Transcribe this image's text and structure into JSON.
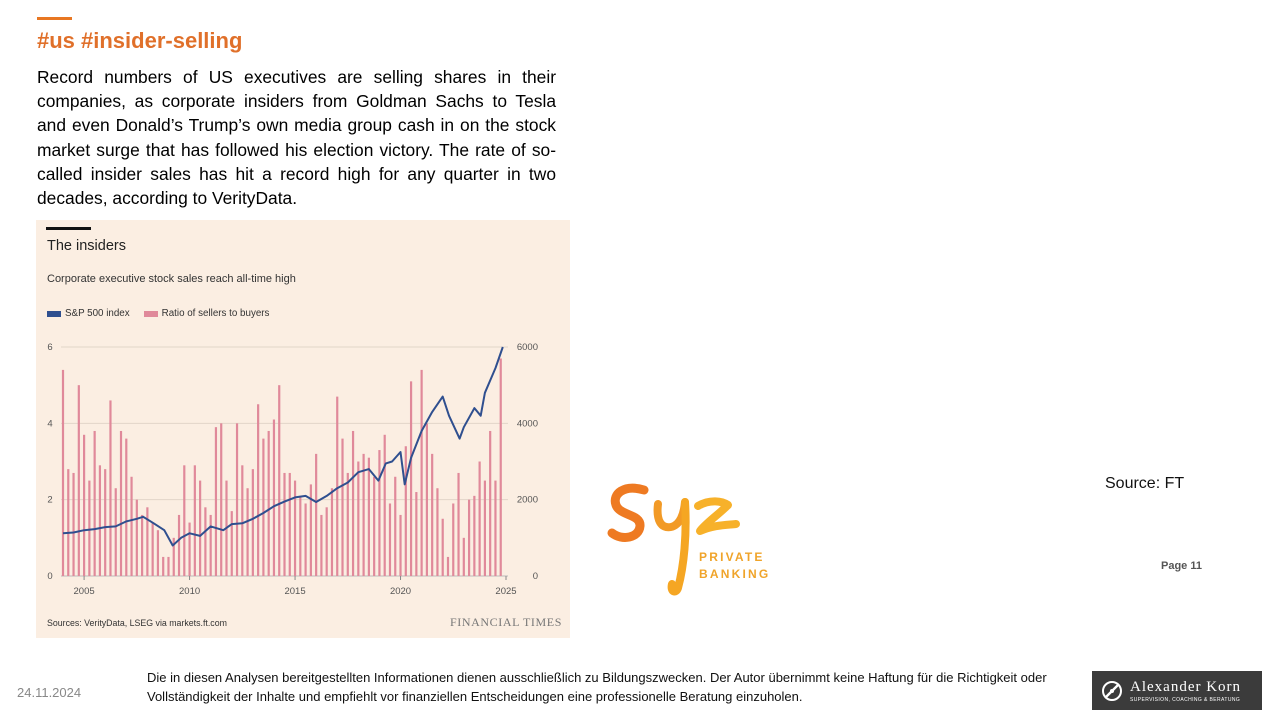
{
  "slide": {
    "hashtag": "#us #insider-selling",
    "intro": "Record numbers of US executives are selling shares in their companies, as corporate insiders from Goldman Sachs to Tesla and even Donald’s Trump’s own media group cash in on the stock market surge that has followed his election victory. The rate of so-called insider sales has hit a record high for any quarter in two decades, according to VerityData.",
    "source_note": "Source: FT",
    "page": "Page 11",
    "date": "24.11.2024",
    "disclaimer": "Die in diesen Analysen bereitgestellten Informationen dienen ausschließlich zu Bildungszwecken. Der Autor übernimmt keine Haftung für die Richtigkeit oder Vollständigkeit der Inhalte und empfiehlt vor finanziellen Entscheidungen eine professionelle Beratung einzuholen."
  },
  "logos": {
    "syz_line1": "PRIVATE",
    "syz_line2": "BANKING",
    "ak_name": "Alexander Korn",
    "ak_sub": "SUPERVISION, COACHING & BERATUNG"
  },
  "chart_data": {
    "type": "bar",
    "title": "The insiders",
    "subtitle": "Corporate executive stock sales reach all-time high",
    "sources": "Sources: VerityData, LSEG via markets.ft.com",
    "publisher": "FINANCIAL TIMES",
    "legend_position": "top-left",
    "grid": true,
    "colors": {
      "sp500": "#2f4f8f",
      "ratio": "#e0899a",
      "background": "#fbeee2"
    },
    "x_ticks": [
      2005,
      2010,
      2015,
      2020,
      2025
    ],
    "xlim": [
      2004,
      2025
    ],
    "left_axis": {
      "ylim": [
        0,
        6
      ],
      "ticks": [
        0,
        2,
        4,
        6
      ]
    },
    "right_axis": {
      "ylim": [
        0,
        6000
      ],
      "ticks": [
        0,
        2000,
        4000,
        6000
      ]
    },
    "series": [
      {
        "name": "Ratio of sellers to buyers",
        "type": "bar",
        "axis": "left",
        "x": [
          2004.0,
          2004.25,
          2004.5,
          2004.75,
          2005.0,
          2005.25,
          2005.5,
          2005.75,
          2006.0,
          2006.25,
          2006.5,
          2006.75,
          2007.0,
          2007.25,
          2007.5,
          2007.75,
          2008.0,
          2008.25,
          2008.5,
          2008.75,
          2009.0,
          2009.25,
          2009.5,
          2009.75,
          2010.0,
          2010.25,
          2010.5,
          2010.75,
          2011.0,
          2011.25,
          2011.5,
          2011.75,
          2012.0,
          2012.25,
          2012.5,
          2012.75,
          2013.0,
          2013.25,
          2013.5,
          2013.75,
          2014.0,
          2014.25,
          2014.5,
          2014.75,
          2015.0,
          2015.25,
          2015.5,
          2015.75,
          2016.0,
          2016.25,
          2016.5,
          2016.75,
          2017.0,
          2017.25,
          2017.5,
          2017.75,
          2018.0,
          2018.25,
          2018.5,
          2018.75,
          2019.0,
          2019.25,
          2019.5,
          2019.75,
          2020.0,
          2020.25,
          2020.5,
          2020.75,
          2021.0,
          2021.25,
          2021.5,
          2021.75,
          2022.0,
          2022.25,
          2022.5,
          2022.75,
          2023.0,
          2023.25,
          2023.5,
          2023.75,
          2024.0,
          2024.25,
          2024.5,
          2024.75
        ],
        "values": [
          5.4,
          2.8,
          2.7,
          5.0,
          3.7,
          2.5,
          3.8,
          2.9,
          2.8,
          4.6,
          2.3,
          3.8,
          3.6,
          2.6,
          2.0,
          1.6,
          1.8,
          1.4,
          1.2,
          0.5,
          0.5,
          1.0,
          1.6,
          2.9,
          1.4,
          2.9,
          2.5,
          1.8,
          1.6,
          3.9,
          4.0,
          2.5,
          1.7,
          4.0,
          2.9,
          2.3,
          2.8,
          4.5,
          3.6,
          3.8,
          4.1,
          5.0,
          2.7,
          2.7,
          2.5,
          2.1,
          1.9,
          2.4,
          3.2,
          1.6,
          1.8,
          2.3,
          4.7,
          3.6,
          2.7,
          3.8,
          3.0,
          3.2,
          3.1,
          2.6,
          3.3,
          3.7,
          1.9,
          2.6,
          1.6,
          3.4,
          5.1,
          2.2,
          5.4,
          4.0,
          3.2,
          2.3,
          1.5,
          0.5,
          1.9,
          2.7,
          1.0,
          2.0,
          2.1,
          3.0,
          2.5,
          3.8,
          2.5,
          5.7
        ]
      },
      {
        "name": "S&P 500 index",
        "type": "line",
        "axis": "right",
        "x": [
          2004.0,
          2004.5,
          2005.0,
          2005.5,
          2006.0,
          2006.5,
          2007.0,
          2007.5,
          2007.8,
          2008.3,
          2008.8,
          2009.2,
          2009.6,
          2010.0,
          2010.5,
          2011.0,
          2011.6,
          2012.0,
          2012.5,
          2013.0,
          2013.5,
          2014.0,
          2014.5,
          2015.0,
          2015.5,
          2016.0,
          2016.5,
          2017.0,
          2017.5,
          2018.0,
          2018.5,
          2018.95,
          2019.3,
          2019.6,
          2020.0,
          2020.2,
          2020.5,
          2021.0,
          2021.5,
          2022.0,
          2022.3,
          2022.8,
          2023.0,
          2023.5,
          2023.8,
          2024.0,
          2024.5,
          2024.85
        ],
        "values": [
          1120,
          1140,
          1200,
          1230,
          1280,
          1300,
          1430,
          1500,
          1550,
          1380,
          1200,
          800,
          1000,
          1120,
          1050,
          1300,
          1200,
          1360,
          1380,
          1500,
          1650,
          1830,
          1950,
          2060,
          2100,
          1940,
          2100,
          2300,
          2450,
          2720,
          2800,
          2500,
          2950,
          3000,
          3250,
          2400,
          3100,
          3800,
          4300,
          4700,
          4200,
          3600,
          3900,
          4400,
          4200,
          4800,
          5450,
          6000
        ]
      }
    ]
  }
}
